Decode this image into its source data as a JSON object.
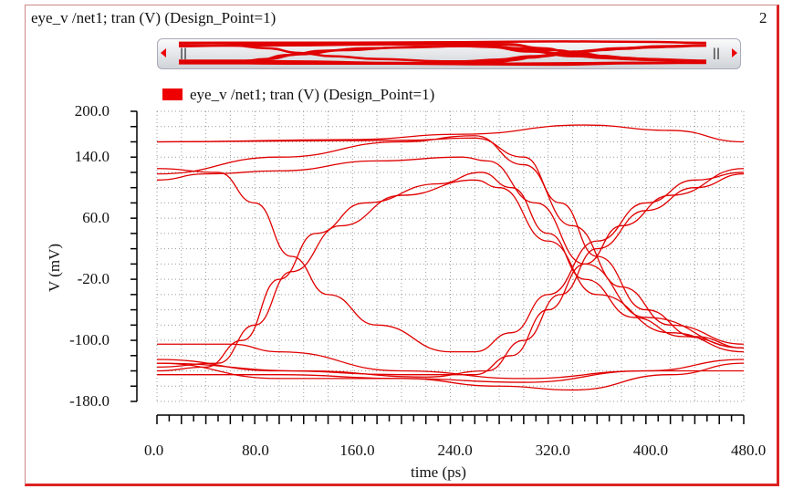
{
  "window": {
    "title": "eye_v /net1; tran (V) (Design_Point=1)",
    "index": "2"
  },
  "colors": {
    "trace": "#e00000",
    "grid": "#999999",
    "axis": "#000000"
  },
  "scrollbar": {
    "left_arrow": "arrow-left-icon",
    "right_arrow": "arrow-right-icon"
  },
  "chart_data": {
    "type": "line",
    "title": "",
    "legend": {
      "label": "eye_v /net1; tran (V) (Design_Point=1)",
      "placement": "top-left"
    },
    "xlabel": "time (ps)",
    "ylabel": "V (mV)",
    "xlim": [
      0,
      480
    ],
    "ylim": [
      -180,
      200
    ],
    "xticks": [
      "0.0",
      "80.0",
      "160.0",
      "240.0",
      "320.0",
      "400.0",
      "480.0"
    ],
    "yticks": [
      "200.0",
      "140.0",
      "60.0",
      "-20.0",
      "-100.0",
      "-180.0"
    ],
    "grid": true,
    "series": [
      {
        "values": [
          [
            0,
            160
          ],
          [
            160,
            163
          ],
          [
            250,
            170
          ],
          [
            350,
            182
          ],
          [
            420,
            175
          ],
          [
            480,
            160
          ]
        ]
      },
      {
        "values": [
          [
            0,
            160
          ],
          [
            200,
            162
          ],
          [
            260,
            165
          ],
          [
            300,
            140
          ],
          [
            330,
            80
          ],
          [
            360,
            10
          ],
          [
            400,
            -60
          ],
          [
            440,
            -95
          ],
          [
            480,
            -110
          ]
        ]
      },
      {
        "values": [
          [
            0,
            118
          ],
          [
            100,
            140
          ],
          [
            200,
            160
          ],
          [
            260,
            168
          ],
          [
            300,
            130
          ],
          [
            340,
            50
          ],
          [
            380,
            -30
          ],
          [
            420,
            -80
          ],
          [
            480,
            -105
          ]
        ]
      },
      {
        "values": [
          [
            0,
            110
          ],
          [
            40,
            118
          ],
          [
            100,
            122
          ],
          [
            180,
            135
          ],
          [
            250,
            140
          ],
          [
            270,
            135
          ],
          [
            310,
            80
          ],
          [
            350,
            0
          ],
          [
            400,
            -70
          ],
          [
            480,
            -110
          ]
        ]
      },
      {
        "values": [
          [
            0,
            125
          ],
          [
            50,
            120
          ],
          [
            80,
            80
          ],
          [
            110,
            10
          ],
          [
            140,
            -40
          ],
          [
            180,
            -80
          ],
          [
            240,
            -115
          ],
          [
            260,
            -115
          ],
          [
            290,
            -90
          ],
          [
            320,
            -40
          ],
          [
            360,
            30
          ],
          [
            400,
            80
          ],
          [
            440,
            110
          ],
          [
            480,
            120
          ]
        ]
      },
      {
        "values": [
          [
            0,
            -140
          ],
          [
            40,
            -135
          ],
          [
            70,
            -100
          ],
          [
            100,
            -20
          ],
          [
            130,
            40
          ],
          [
            170,
            80
          ],
          [
            230,
            105
          ],
          [
            265,
            120
          ],
          [
            290,
            100
          ],
          [
            320,
            40
          ],
          [
            350,
            -20
          ],
          [
            390,
            -70
          ],
          [
            430,
            -95
          ],
          [
            480,
            -110
          ]
        ]
      },
      {
        "values": [
          [
            0,
            -135
          ],
          [
            50,
            -130
          ],
          [
            80,
            -80
          ],
          [
            110,
            -10
          ],
          [
            150,
            50
          ],
          [
            200,
            90
          ],
          [
            260,
            110
          ],
          [
            280,
            100
          ],
          [
            320,
            30
          ],
          [
            360,
            -40
          ],
          [
            420,
            -90
          ],
          [
            480,
            -115
          ]
        ]
      },
      {
        "values": [
          [
            0,
            -125
          ],
          [
            100,
            -140
          ],
          [
            200,
            -145
          ],
          [
            260,
            -145
          ],
          [
            290,
            -120
          ],
          [
            320,
            -60
          ],
          [
            350,
            0
          ],
          [
            380,
            50
          ],
          [
            420,
            90
          ],
          [
            480,
            125
          ]
        ]
      },
      {
        "values": [
          [
            0,
            -130
          ],
          [
            120,
            -140
          ],
          [
            220,
            -148
          ],
          [
            270,
            -140
          ],
          [
            300,
            -100
          ],
          [
            330,
            -40
          ],
          [
            360,
            20
          ],
          [
            400,
            70
          ],
          [
            440,
            100
          ],
          [
            480,
            118
          ]
        ]
      },
      {
        "values": [
          [
            0,
            -105
          ],
          [
            60,
            -105
          ],
          [
            100,
            -115
          ],
          [
            200,
            -140
          ],
          [
            300,
            -150
          ],
          [
            400,
            -140
          ],
          [
            480,
            -125
          ]
        ]
      },
      {
        "values": [
          [
            0,
            -145
          ],
          [
            100,
            -145
          ],
          [
            200,
            -150
          ],
          [
            280,
            -160
          ],
          [
            340,
            -165
          ],
          [
            420,
            -145
          ],
          [
            480,
            -130
          ]
        ]
      },
      {
        "values": [
          [
            0,
            -130
          ],
          [
            100,
            -150
          ],
          [
            200,
            -150
          ],
          [
            300,
            -155
          ],
          [
            400,
            -140
          ],
          [
            480,
            -140
          ]
        ]
      }
    ]
  }
}
